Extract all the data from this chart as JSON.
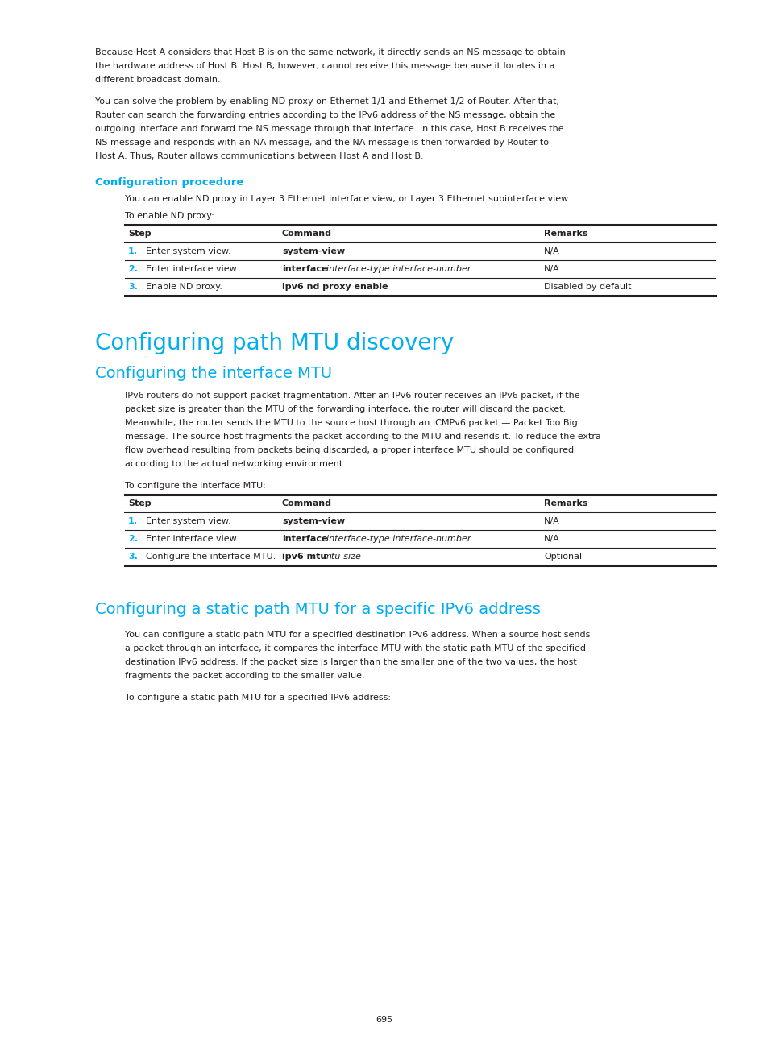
{
  "page_bg": "#ffffff",
  "text_color": "#231f20",
  "cyan_color": "#00aeef",
  "font_size_body": 8.0,
  "font_size_h1": 20,
  "font_size_h2": 14,
  "font_size_config": 9.5,
  "font_size_table_header": 8.0,
  "page_number": "695",
  "para1": "Because Host A considers that Host B is on the same network, it directly sends an NS message to obtain\nthe hardware address of Host B. Host B, however, cannot receive this message because it locates in a\ndifferent broadcast domain.",
  "para2": "You can solve the problem by enabling ND proxy on Ethernet 1/1 and Ethernet 1/2 of Router. After that,\nRouter can search the forwarding entries according to the IPv6 address of the NS message, obtain the\noutgoing interface and forward the NS message through that interface. In this case, Host B receives the\nNS message and responds with an NA message, and the NA message is then forwarded by Router to\nHost A. Thus, Router allows communications between Host A and Host B.",
  "config_proc_label": "Configuration procedure",
  "config_proc_para1": "You can enable ND proxy in Layer 3 Ethernet interface view, or Layer 3 Ethernet subinterface view.",
  "config_proc_para2": "To enable ND proxy:",
  "h1_title": "Configuring path MTU discovery",
  "h2_title1": "Configuring the interface MTU",
  "mtu_para1": "IPv6 routers do not support packet fragmentation. After an IPv6 router receives an IPv6 packet, if the\npacket size is greater than the MTU of the forwarding interface, the router will discard the packet.\nMeanwhile, the router sends the MTU to the source host through an ICMPv6 packet — Packet Too Big\nmessage. The source host fragments the packet according to the MTU and resends it. To reduce the extra\nflow overhead resulting from packets being discarded, a proper interface MTU should be configured\naccording to the actual networking environment.",
  "mtu_para2": "To configure the interface MTU:",
  "h2_title2": "Configuring a static path MTU for a specific IPv6 address",
  "static_para1": "You can configure a static path MTU for a specified destination IPv6 address. When a source host sends\na packet through an interface, it compares the interface MTU with the static path MTU of the specified\ndestination IPv6 address. If the packet size is larger than the smaller one of the two values, the host\nfragments the packet according to the smaller value.",
  "static_para2": "To configure a static path MTU for a specified IPv6 address:"
}
